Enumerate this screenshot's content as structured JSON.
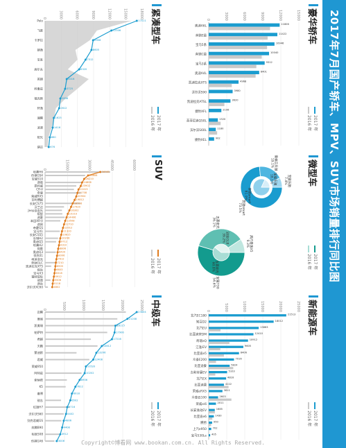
{
  "page_title": "2017年7月国产轿车、MPV、SUV市场销量排行同比图",
  "legend": {
    "y2017": "2017 年",
    "y2016": "2016 年"
  },
  "footer": "Copyright©博看网 www.bookan.com.cn. All Rights Reserved.",
  "colors": {
    "band": "#1f97d2",
    "y2017": "#1a9ccf",
    "y2016": "#c9c9c9",
    "suv": "#e07c1e",
    "mini2017": "#1a9ccf",
    "mini2016": "#8fd0ec",
    "mpv2017": "#139b8e",
    "mpv2016": "#a8ddd5"
  },
  "panels": {
    "luxury": "豪华轿车",
    "ev": "新能源车",
    "mini": "微型车",
    "compact": "紧凑型车",
    "suv": "SUV",
    "mid": "中级车"
  },
  "chart_data": [
    {
      "id": "luxury",
      "type": "bar",
      "title": "豪华轿车",
      "ylim": [
        0,
        15000
      ],
      "yticks": [
        0,
        3000,
        6000,
        9000,
        12000,
        15000
      ],
      "categories": [
        "奥迪A6L",
        "奔驰E级",
        "宝马5系",
        "奔驰C级",
        "宝马3系",
        "奥迪A4L",
        "凯迪拉克XTS",
        "沃尔沃S90",
        "凯迪拉克ATSL",
        "捷豹XFL",
        "英菲尼迪Q50L",
        "沃尔沃S60L",
        "捷豹XEL"
      ],
      "series": [
        {
          "name": "2017 年",
          "values": [
            11806,
            11422,
            10946,
            10040,
            9312,
            8401,
            4968,
            3980,
            3620,
            2106,
            1520,
            1180,
            902
          ]
        },
        {
          "name": "2016 年",
          "values": [
            10208,
            9806,
            9712,
            8825,
            7925,
            7804,
            3840,
            0,
            2608,
            0,
            1980,
            1402,
            0
          ]
        }
      ]
    },
    {
      "id": "ev",
      "type": "bar",
      "title": "新能源车",
      "ylim": [
        0,
        25000
      ],
      "yticks": [
        0,
        5000,
        10000,
        15000,
        20000,
        25000
      ],
      "categories": [
        "北汽EC180",
        "知豆D2",
        "北汽EU",
        "比亚迪宋DM",
        "奇瑞eQ",
        "江淮iEV",
        "比亚迪e5",
        "众泰E200",
        "比亚迪秦",
        "吉利帝豪EV",
        "北汽EX",
        "比亚迪唐",
        "荣威eRX5",
        "众泰云100",
        "荣威ei6",
        "长安逸动EV",
        "比亚迪e6",
        "腾势",
        "上汽e950",
        "宝马530Le"
      ],
      "series": [
        {
          "name": "2017 年",
          "values": [
            21513,
            18012,
            13863,
            12410,
            10912,
            9605,
            8406,
            7016,
            5824,
            5103,
            4816,
            4222,
            3811,
            2603,
            2011,
            1685,
            1430,
            950,
            702,
            405
          ]
        },
        {
          "name": "2016 年",
          "values": [
            0,
            0,
            3280,
            0,
            5740,
            3210,
            4216,
            2030,
            6806,
            1830,
            0,
            5503,
            0,
            6302,
            0,
            1712,
            1008,
            680,
            0,
            0
          ]
        }
      ]
    },
    {
      "id": "mini",
      "type": "pie",
      "title": "微型车",
      "slices_2017": [
        {
          "label": "奔驰smart",
          "value": 73.5
        },
        {
          "label": "雪佛兰乐驰",
          "value": 19.1
        },
        {
          "label": "宝骏乐驰",
          "value": 7.4
        }
      ],
      "slices_2016": [
        {
          "label": "奔驰smart",
          "value": 81.9
        },
        {
          "label": "宝骏乐驰",
          "value": 18.1
        }
      ]
    },
    {
      "id": "mpv",
      "type": "pie",
      "title": "MPV",
      "slices_2017": [
        {
          "label": "宝骏730",
          "value": 54.6
        },
        {
          "label": "五菱宏光",
          "value": 36.1
        },
        {
          "label": "风行景逸X5",
          "value": 9.3
        }
      ],
      "slices_2016": [
        {
          "label": "五菱宏光",
          "value": 60.8
        },
        {
          "label": "别克GL8",
          "value": 39.2
        }
      ]
    },
    {
      "id": "compact",
      "type": "line",
      "title": "紧凑型车",
      "ylim": [
        0,
        18000
      ],
      "yticks": [
        0,
        3000,
        6000,
        9000,
        12000,
        15000,
        18000
      ],
      "categories": [
        "Polo",
        "飞度",
        "卡罗拉",
        "朗逸",
        "宝来",
        "高尔夫",
        "英朗",
        "科鲁兹",
        "福克斯",
        "轩逸",
        "速腾",
        "凌渡",
        "阳光",
        "骐达"
      ],
      "series": [
        {
          "name": "2017 年",
          "values": [
            17011,
            12306,
            8908,
            8605,
            7512,
            6320,
            4016,
            3725,
            2836,
            2612,
            1625,
            1416,
            880,
            676
          ]
        },
        {
          "name": "2016 年",
          "values": [
            16040,
            9615,
            8312,
            5628,
            6013,
            4209,
            8108,
            6002,
            3806,
            2006,
            1712,
            1208,
            612,
            502
          ]
        }
      ]
    },
    {
      "id": "suv",
      "type": "line",
      "title": "SUV",
      "ylim": [
        0,
        65000
      ],
      "yticks": [
        0,
        15000,
        30000,
        45000,
        60000
      ],
      "categories": [
        "哈弗H6",
        "传祺GS4",
        "宝骏510",
        "途观",
        "昂科威",
        "CR-V",
        "奇骏",
        "荣威RX5",
        "吉利博越",
        "长安CS75",
        "汉兰达",
        "Jeep自由光",
        "缤智",
        "逍客",
        "本田XR-V",
        "途昂",
        "帝豪GS",
        "宝马X1",
        "长安CS55",
        "长城H2",
        "奥迪Q5",
        "哈弗H2",
        "探歌",
        "奥迪Q3",
        "领克01",
        "柯迪亚克",
        "奔驰GLC",
        "凯迪拉克XT5",
        "探岳",
        "宝马X3",
        "福特锐际",
        "冠道",
        "途岳",
        "沃尔沃XC60"
      ],
      "series": [
        {
          "name": "2017 年",
          "values": [
            36985,
            28806,
            26210,
            24806,
            23902,
            22415,
            21708,
            20904,
            19812,
            18516,
            17420,
            16302,
            15210,
            14406,
            13508,
            12710,
            12012,
            11320,
            10815,
            10206,
            9712,
            9310,
            8806,
            8420,
            8006,
            7612,
            7210,
            6905,
            6603,
            6318,
            5912,
            5506,
            5118,
            4802
          ]
        },
        {
          "name": "2016 年",
          "values": [
            43602,
            26810,
            0,
            24508,
            20906,
            19320,
            24106,
            0,
            0,
            23604,
            12702,
            11306,
            11602,
            13108,
            10216,
            0,
            0,
            9904,
            0,
            8702,
            7405,
            0,
            0,
            7206,
            0,
            0,
            8005,
            4106,
            0,
            0,
            0,
            3602,
            0,
            1920
          ]
        }
      ]
    },
    {
      "id": "mid",
      "type": "line",
      "title": "中级车",
      "ylim": [
        0,
        25000
      ],
      "yticks": [
        0,
        5000,
        10000,
        15000,
        20000,
        25000
      ],
      "categories": [
        "迈腾",
        "雅阁",
        "凯美瑞",
        "帕萨特",
        "君越",
        "天籁",
        "蒙迪欧",
        "君威",
        "荣威950",
        "阿特兹",
        "索纳塔",
        "K5",
        "睿骋",
        "锐志",
        "红旗H7",
        "沃尔沃S60",
        "别克君威GS",
        "奔腾B90",
        "标致508",
        "传祺GA6"
      ],
      "series": [
        {
          "name": "2017 年",
          "values": [
            23604,
            21208,
            18115,
            17906,
            17216,
            14612,
            13206,
            12408,
            10520,
            10202,
            8906,
            7812,
            6918,
            6502,
            5716,
            5402,
            4806,
            4408,
            3912,
            3006
          ]
        },
        {
          "name": "2016 年",
          "values": [
            20802,
            18615,
            18802,
            16008,
            11802,
            13506,
            8105,
            11412,
            0,
            9402,
            5612,
            5306,
            0,
            4112,
            6302,
            4806,
            4210,
            0,
            3616,
            2405
          ]
        }
      ]
    }
  ]
}
